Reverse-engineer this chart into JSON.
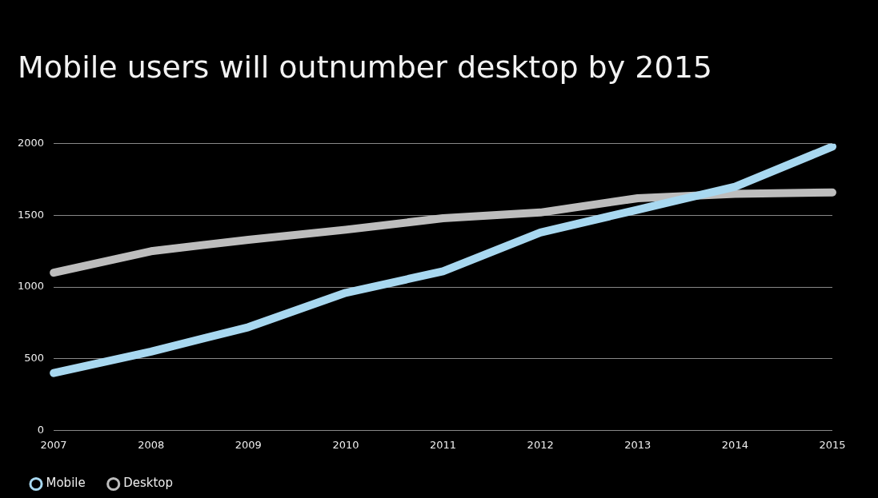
{
  "chart_data": {
    "type": "line",
    "title": "Mobile users will outnumber desktop by 2015",
    "categories": [
      "2007",
      "2008",
      "2009",
      "2010",
      "2011",
      "2012",
      "2013",
      "2014",
      "2015"
    ],
    "series": [
      {
        "name": "Mobile",
        "color": "#a8d8f0",
        "values": [
          400,
          550,
          720,
          960,
          1110,
          1380,
          1540,
          1700,
          1980
        ]
      },
      {
        "name": "Desktop",
        "color": "#bdbdbd",
        "values": [
          1100,
          1250,
          1330,
          1400,
          1480,
          1520,
          1620,
          1650,
          1660
        ]
      }
    ],
    "ylim": [
      0,
      2000
    ],
    "yticks": [
      0,
      500,
      1000,
      1500,
      2000
    ],
    "grid": "y",
    "legend": "bottom left",
    "marker": "none",
    "line_style": "solid"
  }
}
